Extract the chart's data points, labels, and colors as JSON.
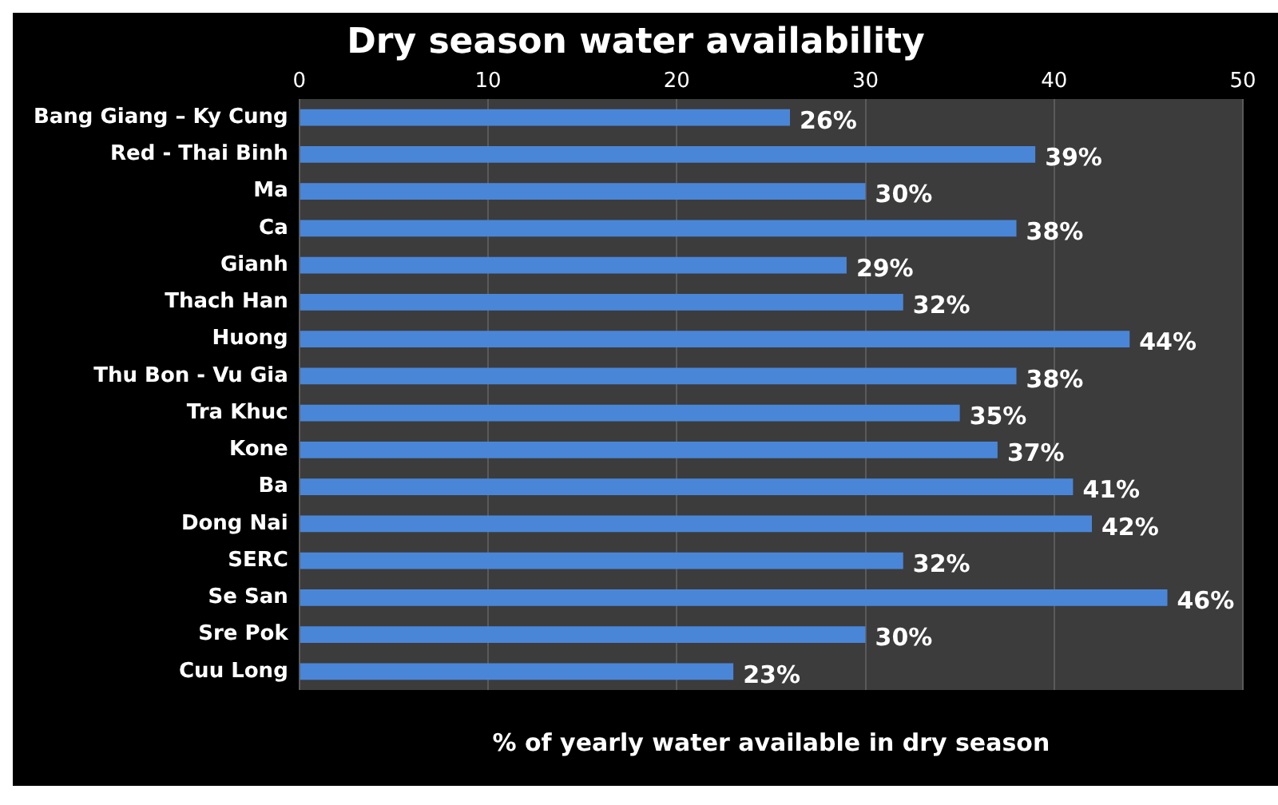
{
  "chart_data": {
    "type": "bar",
    "orientation": "horizontal",
    "title": "Dry season water availability",
    "xlabel": "% of yearly water available in dry season",
    "categories": [
      "Bang Giang – Ky Cung",
      "Red - Thai Binh",
      "Ma",
      "Ca",
      "Gianh",
      "Thach Han",
      "Huong",
      "Thu Bon - Vu Gia",
      "Tra Khuc",
      "Kone",
      "Ba",
      "Dong Nai",
      "SERC",
      "Se San",
      "Sre Pok",
      "Cuu Long"
    ],
    "values": [
      26,
      39,
      30,
      38,
      29,
      32,
      44,
      38,
      35,
      37,
      41,
      42,
      32,
      46,
      30,
      23
    ],
    "value_labels": [
      "26%",
      "39%",
      "30%",
      "38%",
      "29%",
      "32%",
      "44%",
      "38%",
      "35%",
      "37%",
      "41%",
      "42%",
      "32%",
      "46%",
      "30%",
      "23%"
    ],
    "color": "#4a86d8",
    "xlim": [
      0,
      50
    ],
    "xticks": [
      0,
      10,
      20,
      30,
      40,
      50
    ],
    "grid": "x"
  }
}
